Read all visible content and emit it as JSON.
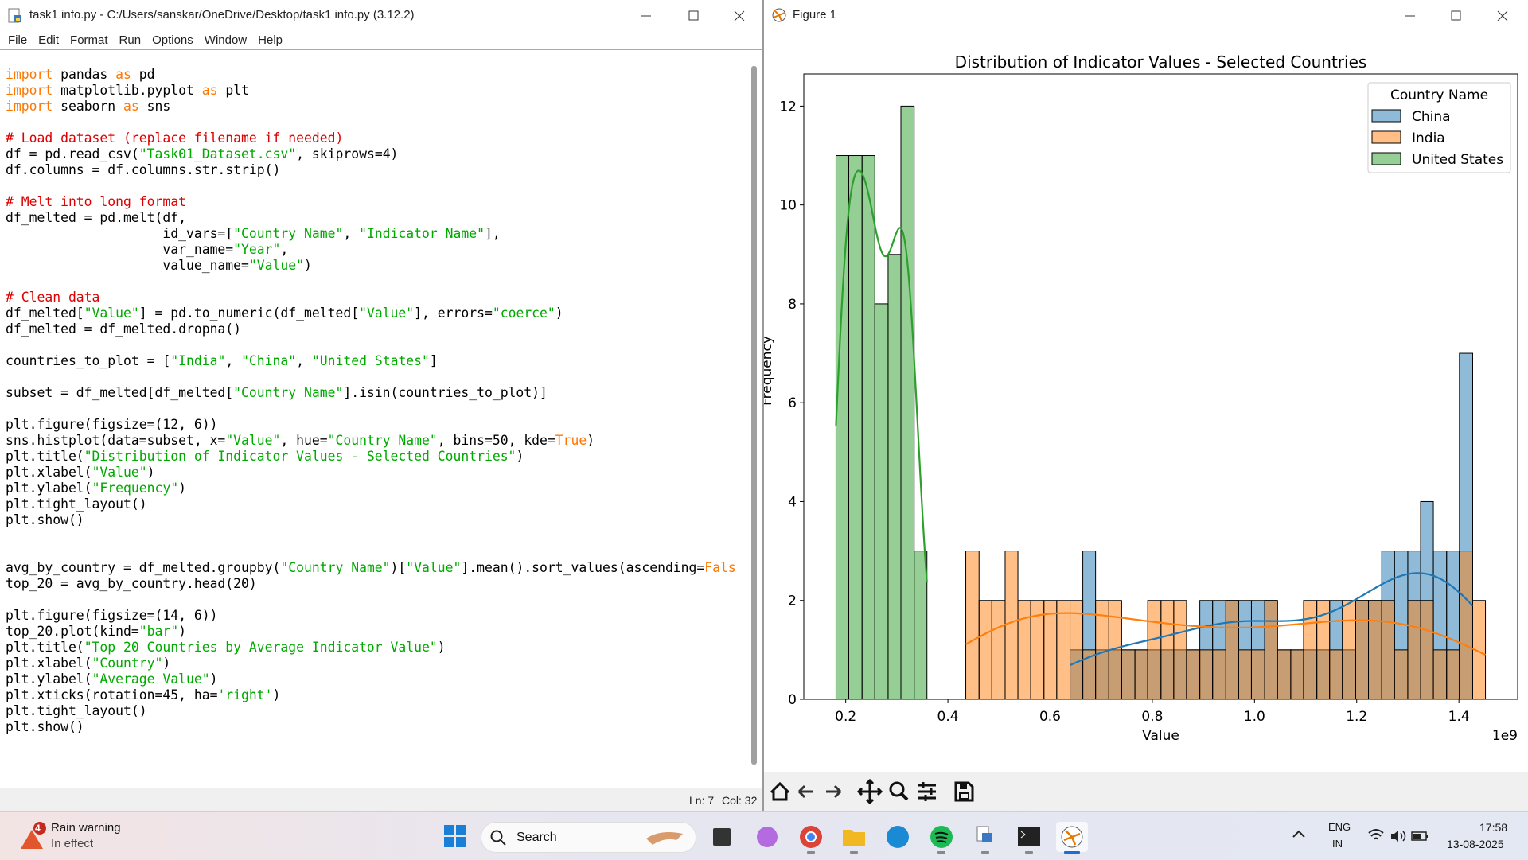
{
  "idle_window": {
    "title": "task1 info.py - C:/Users/sanskar/OneDrive/Desktop/task1 info.py (3.12.2)",
    "menu": [
      "File",
      "Edit",
      "Format",
      "Run",
      "Options",
      "Window",
      "Help"
    ],
    "keywords": [
      "import",
      "as",
      "True",
      "Fals"
    ],
    "code": [
      "import pandas as pd",
      "import matplotlib.pyplot as plt",
      "import seaborn as sns",
      null,
      "# Load dataset (replace filename if needed)",
      "df = pd.read_csv(\"Task01_Dataset.csv\", skiprows=4)",
      "df.columns = df.columns.str.strip()",
      null,
      "# Melt into long format",
      "df_melted = pd.melt(df,",
      "                    id_vars=[\"Country Name\", \"Indicator Name\"],",
      "                    var_name=\"Year\",",
      "                    value_name=\"Value\")",
      null,
      "# Clean data",
      "df_melted[\"Value\"] = pd.to_numeric(df_melted[\"Value\"], errors=\"coerce\")",
      "df_melted = df_melted.dropna()",
      null,
      "countries_to_plot = [\"India\", \"China\", \"United States\"]",
      null,
      "subset = df_melted[df_melted[\"Country Name\"].isin(countries_to_plot)]",
      null,
      "plt.figure(figsize=(12, 6))",
      "sns.histplot(data=subset, x=\"Value\", hue=\"Country Name\", bins=50, kde=True)",
      "plt.title(\"Distribution of Indicator Values - Selected Countries\")",
      "plt.xlabel(\"Value\")",
      "plt.ylabel(\"Frequency\")",
      "plt.tight_layout()",
      "plt.show()",
      null,
      null,
      "avg_by_country = df_melted.groupby(\"Country Name\")[\"Value\"].mean().sort_values(ascending=Fals",
      "top_20 = avg_by_country.head(20)",
      null,
      "plt.figure(figsize=(14, 6))",
      "top_20.plot(kind=\"bar\")",
      "plt.title(\"Top 20 Countries by Average Indicator Value\")",
      "plt.xlabel(\"Country\")",
      "plt.ylabel(\"Average Value\")",
      "plt.xticks(rotation=45, ha='right')",
      "plt.tight_layout()",
      "plt.show()"
    ],
    "status": {
      "line": "Ln: 7",
      "col": "Col: 32"
    }
  },
  "figure_window": {
    "title": "Figure 1"
  },
  "chart_data": {
    "type": "histogram",
    "title": "Distribution of Indicator Values - Selected Countries",
    "xlabel": "Value",
    "ylabel": "Frequency",
    "x_offset_label": "1e9",
    "bins": [
      0.181,
      0.206,
      0.232,
      0.257,
      0.283,
      0.308,
      0.334,
      0.359,
      0.384,
      0.41,
      0.435,
      0.461,
      0.486,
      0.512,
      0.537,
      0.562,
      0.588,
      0.613,
      0.639,
      0.664,
      0.689,
      0.715,
      0.74,
      0.766,
      0.791,
      0.817,
      0.842,
      0.867,
      0.893,
      0.918,
      0.944,
      0.969,
      0.994,
      1.02,
      1.045,
      1.071,
      1.096,
      1.122,
      1.147,
      1.172,
      1.198,
      1.223,
      1.249,
      1.274,
      1.3,
      1.325,
      1.35,
      1.376,
      1.401,
      1.427,
      1.452
    ],
    "series": [
      {
        "name": "China",
        "color": "#1f77b4",
        "values": [
          0,
          0,
          0,
          0,
          0,
          0,
          0,
          0,
          0,
          0,
          0,
          0,
          0,
          0,
          0,
          0,
          0,
          0,
          1,
          3,
          1,
          1,
          1,
          1,
          1,
          1,
          1,
          1,
          2,
          2,
          2,
          2,
          2,
          2,
          1,
          1,
          1,
          1,
          2,
          1,
          2,
          2,
          3,
          3,
          3,
          4,
          3,
          3,
          7,
          0
        ]
      },
      {
        "name": "India",
        "color": "#ff7f0e",
        "values": [
          0,
          0,
          0,
          0,
          0,
          0,
          0,
          0,
          0,
          0,
          3,
          2,
          2,
          3,
          2,
          2,
          2,
          2,
          2,
          1,
          2,
          2,
          1,
          1,
          2,
          2,
          2,
          1,
          1,
          1,
          2,
          1,
          1,
          2,
          1,
          1,
          2,
          2,
          1,
          2,
          2,
          2,
          2,
          1,
          2,
          2,
          1,
          1,
          3,
          2
        ]
      },
      {
        "name": "United States",
        "color": "#2ca02c",
        "values": [
          11,
          11,
          11,
          8,
          9,
          12,
          3,
          0,
          0,
          0,
          0,
          0,
          0,
          0,
          0,
          0,
          0,
          0,
          0,
          0,
          0,
          0,
          0,
          0,
          0,
          0,
          0,
          0,
          0,
          0,
          0,
          0,
          0,
          0,
          0,
          0,
          0,
          0,
          0,
          0,
          0,
          0,
          0,
          0,
          0,
          0,
          0,
          0,
          0,
          0
        ]
      }
    ],
    "alpha": 0.5,
    "kde": true,
    "xlim": [
      0.118,
      1.515
    ],
    "ylim": [
      0,
      12.65
    ],
    "xticks": [
      0.2,
      0.4,
      0.6,
      0.8,
      {
        "value": 1,
        "label": "1.0"
      },
      1.2,
      1.4
    ],
    "yticks": [
      0,
      2,
      4,
      6,
      8,
      10,
      12
    ],
    "legend_title": "Country Name",
    "legend": "upper right"
  },
  "taskbar": {
    "weather": {
      "badge": "4",
      "title": "Rain warning",
      "subtitle": "In effect"
    },
    "search": "Search",
    "language": [
      "ENG",
      "IN"
    ],
    "time": "17:58",
    "date": "13-08-2025"
  }
}
